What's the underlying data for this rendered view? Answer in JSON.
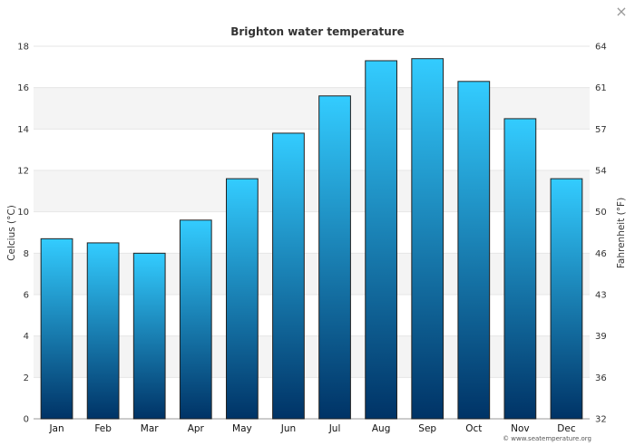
{
  "close_icon": "×",
  "colors": {
    "bar_top": "#33ccff",
    "bar_bottom": "#003366",
    "band": "#f4f4f4",
    "grid": "#e6e6e6"
  },
  "chart_data": {
    "type": "bar",
    "title": "Brighton water temperature",
    "categories": [
      "Jan",
      "Feb",
      "Mar",
      "Apr",
      "May",
      "Jun",
      "Jul",
      "Aug",
      "Sep",
      "Oct",
      "Nov",
      "Dec"
    ],
    "series": [
      {
        "values": [
          8.7,
          8.5,
          8.0,
          9.6,
          11.6,
          13.8,
          15.6,
          17.3,
          17.4,
          16.3,
          14.5,
          11.6
        ]
      }
    ],
    "ylabel": "Celcius (°C)",
    "ylim": [
      0,
      18
    ],
    "yticks": [
      0,
      2,
      4,
      6,
      8,
      10,
      12,
      14,
      16,
      18
    ],
    "y2label": "Fahrenheit (°F)",
    "y2ticks": [
      "32",
      "36",
      "39",
      "43",
      "46",
      "50",
      "54",
      "57",
      "61",
      "64"
    ],
    "grid": true,
    "credit": "© www.seatemperature.org"
  }
}
